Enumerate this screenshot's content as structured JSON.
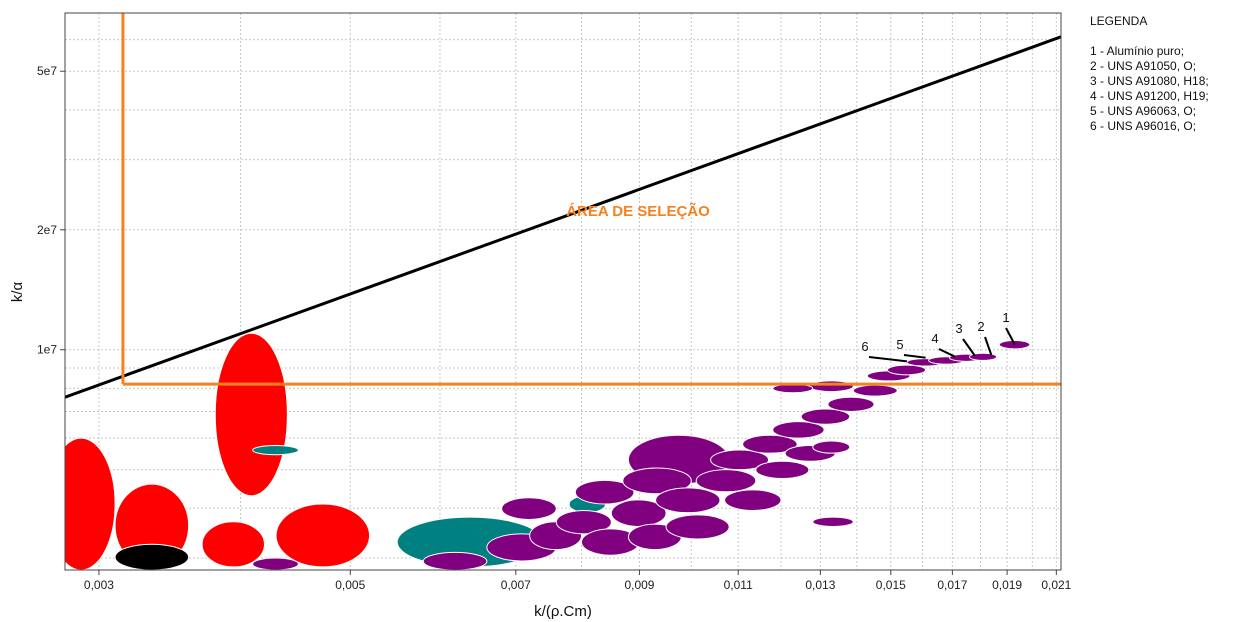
{
  "chart_data": {
    "type": "scatter",
    "title": "",
    "xlabel": "k/(ρ.Cm)",
    "ylabel": "k/α",
    "x_ticks": [
      "0,003",
      "0,005",
      "0,007",
      "0,009",
      "0,011",
      "0,013",
      "0,015",
      "0,017",
      "0,019",
      "0,021"
    ],
    "y_ticks": [
      "1e7",
      "2e7",
      "5e7"
    ],
    "xlim": [
      0.0028,
      0.0212
    ],
    "ylim": [
      2800000,
      70000000
    ],
    "scale": "log-log",
    "grid": true,
    "selection_label": "ÁREA DE SELEÇÃO",
    "selection_line": {
      "x": [
        0.0028,
        0.0212
      ],
      "y": [
        7600000,
        61000000
      ]
    },
    "selection_limits": {
      "x": 0.00315,
      "y": 8200000
    },
    "colors": {
      "selection": "#f5821f",
      "line": "#000000",
      "purple": "#800080",
      "red": "#ff0000",
      "teal": "#008080",
      "black": "#000000"
    },
    "legend": {
      "title": "LEGENDA",
      "items": [
        "1 - Alumínio puro;",
        "2 - UNS A91050, O;",
        "3 - UNS A91080, H18;",
        "4 - UNS A91200, H19;",
        "5 - UNS A96063, O;",
        "6 - UNS A96016, O;"
      ]
    },
    "callouts": [
      {
        "label": "1",
        "x": 0.0193,
        "y": 10300000
      },
      {
        "label": "2",
        "x": 0.0184,
        "y": 9700000
      },
      {
        "label": "3",
        "x": 0.0178,
        "y": 9650000
      },
      {
        "label": "4",
        "x": 0.0171,
        "y": 9600000
      },
      {
        "label": "5",
        "x": 0.0161,
        "y": 9550000
      },
      {
        "label": "6",
        "x": 0.0155,
        "y": 9350000
      }
    ],
    "bubbles": [
      {
        "color": "red",
        "x": 0.0041,
        "y": 6900000,
        "xmin": 0.0038,
        "xmax": 0.0044,
        "ymin": 4300000,
        "ymax": 11000000
      },
      {
        "color": "red",
        "x": 0.0029,
        "y": 4100000,
        "xmin": 0.0027,
        "xmax": 0.0031,
        "ymin": 2800000,
        "ymax": 6000000
      },
      {
        "color": "red",
        "x": 0.0033,
        "y": 3500000,
        "xmin": 0.0031,
        "xmax": 0.0036,
        "ymin": 2850000,
        "ymax": 4600000
      },
      {
        "color": "red",
        "x": 0.0039,
        "y": 3200000,
        "xmin": 0.0037,
        "xmax": 0.0042,
        "ymin": 2850000,
        "ymax": 3700000
      },
      {
        "color": "red",
        "x": 0.0047,
        "y": 3400000,
        "xmin": 0.0043,
        "xmax": 0.0052,
        "ymin": 2850000,
        "ymax": 4100000
      },
      {
        "color": "black",
        "x": 0.0033,
        "y": 3000000,
        "xmin": 0.0031,
        "xmax": 0.0036,
        "ymin": 2800000,
        "ymax": 3250000
      },
      {
        "color": "teal",
        "x": 0.0043,
        "y": 5600000,
        "xmin": 0.0041,
        "xmax": 0.0045,
        "ymin": 5450000,
        "ymax": 5750000
      },
      {
        "color": "teal",
        "x": 0.0064,
        "y": 3300000,
        "xmin": 0.0055,
        "xmax": 0.0074,
        "ymin": 2850000,
        "ymax": 3800000
      },
      {
        "color": "teal",
        "x": 0.0081,
        "y": 4100000,
        "xmin": 0.0078,
        "xmax": 0.0084,
        "ymin": 3900000,
        "ymax": 4300000
      },
      {
        "color": "purple",
        "x": 0.0043,
        "y": 2900000,
        "xmin": 0.0041,
        "xmax": 0.0045,
        "ymin": 2800000,
        "ymax": 3000000
      },
      {
        "color": "purple",
        "x": 0.0062,
        "y": 2950000,
        "xmin": 0.0058,
        "xmax": 0.0066,
        "ymin": 2800000,
        "ymax": 3100000
      },
      {
        "color": "purple",
        "x": 0.0071,
        "y": 3200000,
        "xmin": 0.0066,
        "xmax": 0.0076,
        "ymin": 2950000,
        "ymax": 3450000
      },
      {
        "color": "purple",
        "x": 0.0076,
        "y": 3400000,
        "xmin": 0.0072,
        "xmax": 0.008,
        "ymin": 3150000,
        "ymax": 3700000
      },
      {
        "color": "purple",
        "x": 0.0072,
        "y": 4000000,
        "xmin": 0.0068,
        "xmax": 0.0076,
        "ymin": 3750000,
        "ymax": 4250000
      },
      {
        "color": "purple",
        "x": 0.008,
        "y": 3700000,
        "xmin": 0.0076,
        "xmax": 0.0085,
        "ymin": 3450000,
        "ymax": 3950000
      },
      {
        "color": "purple",
        "x": 0.0085,
        "y": 3300000,
        "xmin": 0.008,
        "xmax": 0.009,
        "ymin": 3050000,
        "ymax": 3550000
      },
      {
        "color": "purple",
        "x": 0.0084,
        "y": 4400000,
        "xmin": 0.0079,
        "xmax": 0.0089,
        "ymin": 4100000,
        "ymax": 4700000
      },
      {
        "color": "purple",
        "x": 0.009,
        "y": 3900000,
        "xmin": 0.0085,
        "xmax": 0.0095,
        "ymin": 3600000,
        "ymax": 4200000
      },
      {
        "color": "purple",
        "x": 0.0093,
        "y": 3400000,
        "xmin": 0.0088,
        "xmax": 0.0098,
        "ymin": 3150000,
        "ymax": 3650000
      },
      {
        "color": "purple",
        "x": 0.0097,
        "y": 5300000,
        "xmin": 0.0088,
        "xmax": 0.0108,
        "ymin": 4600000,
        "ymax": 6100000
      },
      {
        "color": "purple",
        "x": 0.0093,
        "y": 4700000,
        "xmin": 0.0087,
        "xmax": 0.01,
        "ymin": 4350000,
        "ymax": 5050000
      },
      {
        "color": "purple",
        "x": 0.0099,
        "y": 4200000,
        "xmin": 0.0093,
        "xmax": 0.0106,
        "ymin": 3900000,
        "ymax": 4500000
      },
      {
        "color": "purple",
        "x": 0.0101,
        "y": 3600000,
        "xmin": 0.0095,
        "xmax": 0.0108,
        "ymin": 3350000,
        "ymax": 3850000
      },
      {
        "color": "purple",
        "x": 0.0107,
        "y": 4700000,
        "xmin": 0.0101,
        "xmax": 0.0114,
        "ymin": 4400000,
        "ymax": 5000000
      },
      {
        "color": "purple",
        "x": 0.011,
        "y": 5300000,
        "xmin": 0.0104,
        "xmax": 0.0117,
        "ymin": 5000000,
        "ymax": 5600000
      },
      {
        "color": "purple",
        "x": 0.0113,
        "y": 4200000,
        "xmin": 0.0107,
        "xmax": 0.012,
        "ymin": 3950000,
        "ymax": 4450000
      },
      {
        "color": "purple",
        "x": 0.0117,
        "y": 5800000,
        "xmin": 0.0111,
        "xmax": 0.0124,
        "ymin": 5500000,
        "ymax": 6100000
      },
      {
        "color": "purple",
        "x": 0.012,
        "y": 5000000,
        "xmin": 0.0114,
        "xmax": 0.0127,
        "ymin": 4750000,
        "ymax": 5250000
      },
      {
        "color": "purple",
        "x": 0.0124,
        "y": 6300000,
        "xmin": 0.0118,
        "xmax": 0.0131,
        "ymin": 6000000,
        "ymax": 6600000
      },
      {
        "color": "purple",
        "x": 0.0127,
        "y": 5500000,
        "xmin": 0.0121,
        "xmax": 0.0134,
        "ymin": 5250000,
        "ymax": 5750000
      },
      {
        "color": "purple",
        "x": 0.0131,
        "y": 6800000,
        "xmin": 0.0125,
        "xmax": 0.0138,
        "ymin": 6500000,
        "ymax": 7100000
      },
      {
        "color": "purple",
        "x": 0.0133,
        "y": 5700000,
        "xmin": 0.0128,
        "xmax": 0.0138,
        "ymin": 5500000,
        "ymax": 5900000
      },
      {
        "color": "purple",
        "x": 0.0138,
        "y": 7300000,
        "xmin": 0.0132,
        "xmax": 0.0145,
        "ymin": 7000000,
        "ymax": 7600000
      },
      {
        "color": "purple",
        "x": 0.0133,
        "y": 8100000,
        "xmin": 0.0127,
        "xmax": 0.0139,
        "ymin": 7850000,
        "ymax": 8350000
      },
      {
        "color": "purple",
        "x": 0.0123,
        "y": 8000000,
        "xmin": 0.0118,
        "xmax": 0.0128,
        "ymin": 7800000,
        "ymax": 8200000
      },
      {
        "color": "purple",
        "x": 0.0145,
        "y": 7900000,
        "xmin": 0.0139,
        "xmax": 0.0152,
        "ymin": 7650000,
        "ymax": 8150000
      },
      {
        "color": "purple",
        "x": 0.0149,
        "y": 8600000,
        "xmin": 0.0143,
        "xmax": 0.0156,
        "ymin": 8350000,
        "ymax": 8850000
      },
      {
        "color": "purple",
        "x": 0.0155,
        "y": 8900000,
        "xmin": 0.0149,
        "xmax": 0.0161,
        "ymin": 8650000,
        "ymax": 9150000
      },
      {
        "color": "purple",
        "x": 0.0161,
        "y": 9300000,
        "xmin": 0.0155,
        "xmax": 0.0167,
        "ymin": 9100000,
        "ymax": 9500000
      },
      {
        "color": "purple",
        "x": 0.0168,
        "y": 9400000,
        "xmin": 0.0162,
        "xmax": 0.0174,
        "ymin": 9200000,
        "ymax": 9600000
      },
      {
        "color": "purple",
        "x": 0.0175,
        "y": 9550000,
        "xmin": 0.0169,
        "xmax": 0.0181,
        "ymin": 9350000,
        "ymax": 9750000
      },
      {
        "color": "purple",
        "x": 0.0181,
        "y": 9600000,
        "xmin": 0.0176,
        "xmax": 0.0186,
        "ymin": 9400000,
        "ymax": 9800000
      },
      {
        "color": "purple",
        "x": 0.0193,
        "y": 10300000,
        "xmin": 0.0187,
        "xmax": 0.0199,
        "ymin": 10050000,
        "ymax": 10550000
      },
      {
        "color": "purple",
        "x": 0.0133,
        "y": 3700000,
        "xmin": 0.0128,
        "xmax": 0.0139,
        "ymin": 3600000,
        "ymax": 3800000
      }
    ]
  }
}
